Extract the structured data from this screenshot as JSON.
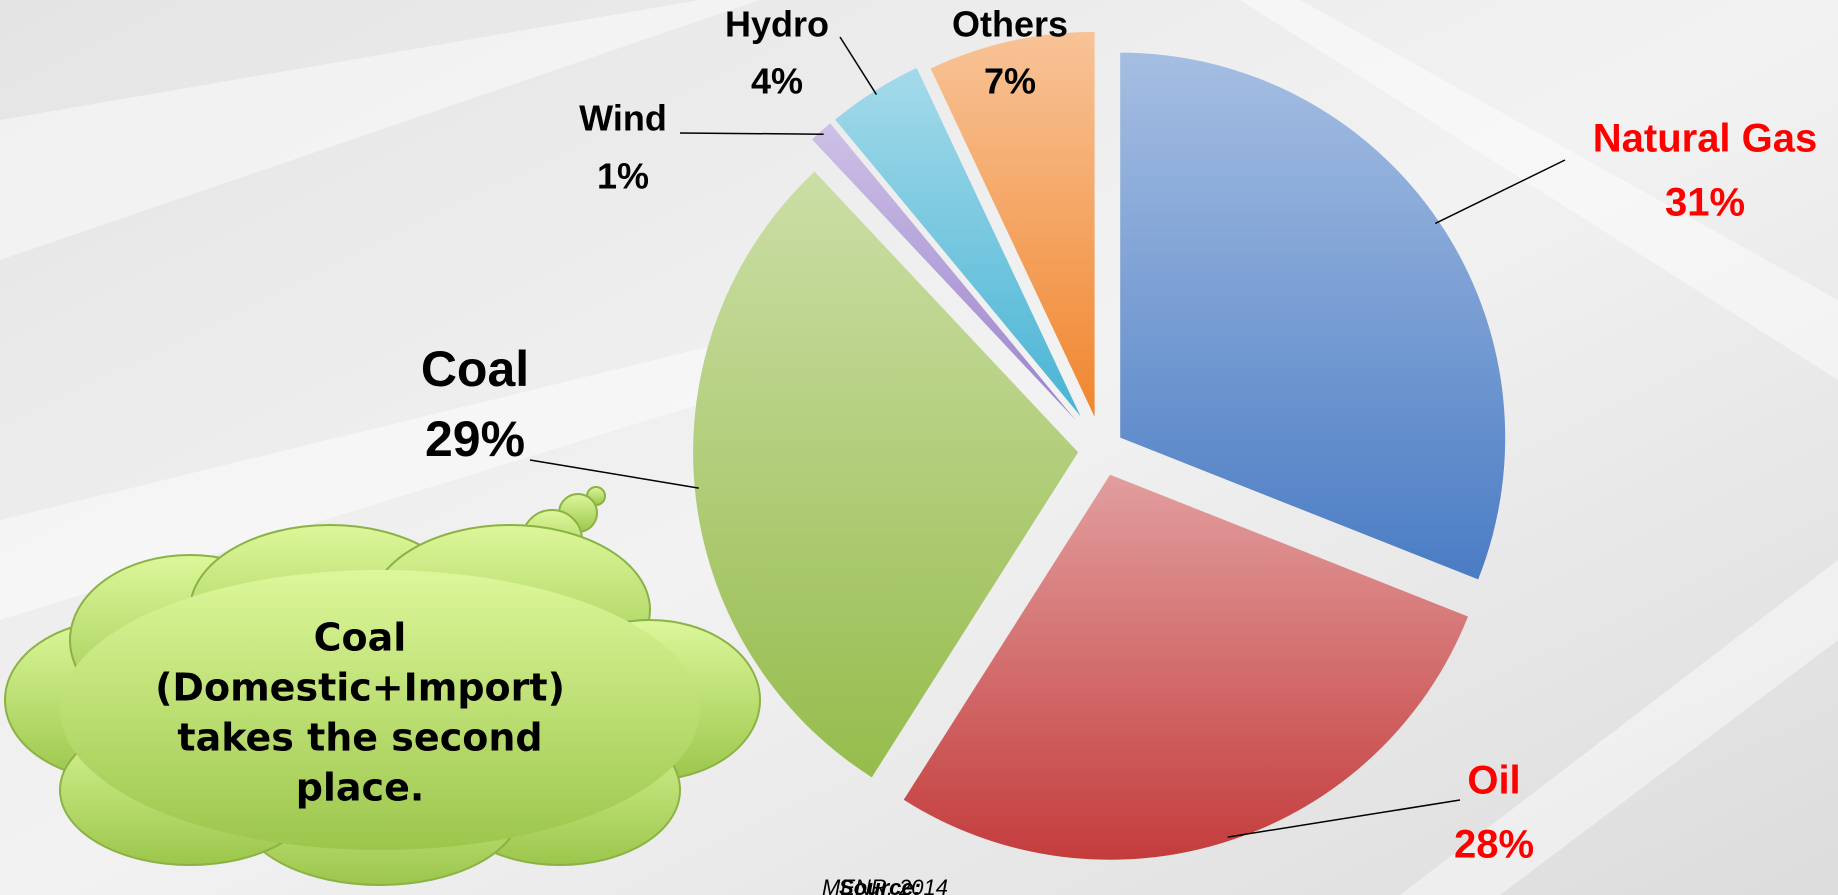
{
  "chart_data": {
    "type": "pie",
    "categories": [
      "Natural Gas",
      "Oil",
      "Coal",
      "Wind",
      "Hydro",
      "Others"
    ],
    "values": [
      31,
      28,
      29,
      1,
      4,
      7
    ],
    "value_labels": [
      "31%",
      "28%",
      "29%",
      "1%",
      "4%",
      "7%"
    ],
    "colors": [
      "#4a7cc4",
      "#c43c3c",
      "#96bc4c",
      "#9a82cc",
      "#48b4d4",
      "#f0862e"
    ],
    "label_colors": [
      "#ff0000",
      "#ff0000",
      "#000000",
      "#000000",
      "#000000",
      "#000000"
    ],
    "annotation": [
      "Coal",
      "(Domestic+Import)",
      "takes the second",
      "place."
    ],
    "source_label": "Source:",
    "source": "MENR, 2014"
  }
}
